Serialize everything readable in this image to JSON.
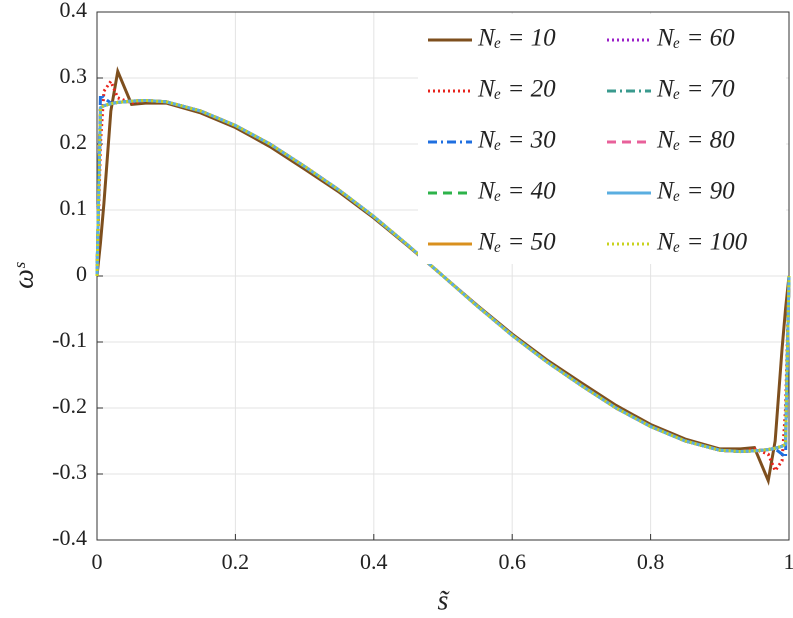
{
  "chart_data": {
    "type": "line",
    "xlabel": "s̃",
    "ylabel": "ωˢ",
    "x": [
      0,
      0.005,
      0.01,
      0.02,
      0.03,
      0.05,
      0.07,
      0.1,
      0.15,
      0.2,
      0.25,
      0.3,
      0.35,
      0.4,
      0.45,
      0.5,
      0.55,
      0.6,
      0.65,
      0.7,
      0.75,
      0.8,
      0.85,
      0.9,
      0.93,
      0.95,
      0.97,
      0.98,
      0.99,
      0.995,
      1
    ],
    "xlim": [
      0,
      1
    ],
    "xticks": [
      0,
      0.2,
      0.4,
      0.6,
      0.8,
      1
    ],
    "ylim": [
      -0.4,
      0.4
    ],
    "yticks": [
      -0.4,
      -0.3,
      -0.2,
      -0.1,
      0,
      0.1,
      0.2,
      0.3,
      0.4
    ],
    "grid": true,
    "legend": "top-right",
    "series": [
      {
        "name": "Nₑ = 10",
        "color": "#7e4f1e",
        "style": "solid",
        "values": [
          0,
          0.05,
          0.11,
          0.25,
          0.31,
          0.26,
          0.262,
          0.262,
          0.247,
          0.225,
          0.196,
          0.162,
          0.127,
          0.088,
          0.045,
          0,
          -0.045,
          -0.088,
          -0.127,
          -0.162,
          -0.196,
          -0.225,
          -0.247,
          -0.262,
          -0.262,
          -0.26,
          -0.31,
          -0.25,
          -0.11,
          -0.05,
          0
        ]
      },
      {
        "name": "Nₑ = 20",
        "color": "#e8231c",
        "style": "dotted",
        "values": [
          0,
          0.2,
          0.28,
          0.295,
          0.27,
          0.262,
          0.266,
          0.264,
          0.25,
          0.228,
          0.2,
          0.166,
          0.13,
          0.09,
          0.046,
          0,
          -0.046,
          -0.09,
          -0.13,
          -0.166,
          -0.2,
          -0.228,
          -0.25,
          -0.264,
          -0.266,
          -0.262,
          -0.27,
          -0.295,
          -0.28,
          -0.2,
          0
        ]
      },
      {
        "name": "Nₑ = 30",
        "color": "#1f6fe0",
        "style": "dashdot",
        "values": [
          0,
          0.275,
          0.27,
          0.262,
          0.263,
          0.265,
          0.266,
          0.264,
          0.25,
          0.228,
          0.2,
          0.166,
          0.13,
          0.09,
          0.046,
          0,
          -0.046,
          -0.09,
          -0.13,
          -0.166,
          -0.2,
          -0.228,
          -0.25,
          -0.264,
          -0.266,
          -0.265,
          -0.263,
          -0.262,
          -0.27,
          -0.275,
          0
        ]
      },
      {
        "name": "Nₑ = 40",
        "color": "#2db34a",
        "style": "dashed",
        "values": [
          0,
          0.255,
          0.258,
          0.261,
          0.263,
          0.265,
          0.266,
          0.264,
          0.25,
          0.228,
          0.2,
          0.166,
          0.13,
          0.09,
          0.046,
          0,
          -0.046,
          -0.09,
          -0.13,
          -0.166,
          -0.2,
          -0.228,
          -0.25,
          -0.264,
          -0.266,
          -0.265,
          -0.263,
          -0.261,
          -0.258,
          -0.255,
          0
        ]
      },
      {
        "name": "Nₑ = 50",
        "color": "#d9901e",
        "style": "solid",
        "values": [
          0,
          0.255,
          0.258,
          0.261,
          0.263,
          0.265,
          0.266,
          0.264,
          0.25,
          0.228,
          0.2,
          0.166,
          0.13,
          0.09,
          0.046,
          0,
          -0.046,
          -0.09,
          -0.13,
          -0.166,
          -0.2,
          -0.228,
          -0.25,
          -0.264,
          -0.266,
          -0.265,
          -0.263,
          -0.261,
          -0.258,
          -0.255,
          0
        ]
      },
      {
        "name": "Nₑ = 60",
        "color": "#9b1fc9",
        "style": "dotted",
        "values": [
          0,
          0.255,
          0.258,
          0.261,
          0.263,
          0.265,
          0.266,
          0.264,
          0.25,
          0.228,
          0.2,
          0.166,
          0.13,
          0.09,
          0.046,
          0,
          -0.046,
          -0.09,
          -0.13,
          -0.166,
          -0.2,
          -0.228,
          -0.25,
          -0.264,
          -0.266,
          -0.265,
          -0.263,
          -0.261,
          -0.258,
          -0.255,
          0
        ]
      },
      {
        "name": "Nₑ = 70",
        "color": "#3a9a8e",
        "style": "dashdot",
        "values": [
          0,
          0.255,
          0.258,
          0.261,
          0.263,
          0.265,
          0.266,
          0.264,
          0.25,
          0.228,
          0.2,
          0.166,
          0.13,
          0.09,
          0.046,
          0,
          -0.046,
          -0.09,
          -0.13,
          -0.166,
          -0.2,
          -0.228,
          -0.25,
          -0.264,
          -0.266,
          -0.265,
          -0.263,
          -0.261,
          -0.258,
          -0.255,
          0
        ]
      },
      {
        "name": "Nₑ = 80",
        "color": "#e8609a",
        "style": "dashed",
        "values": [
          0,
          0.255,
          0.258,
          0.261,
          0.263,
          0.265,
          0.266,
          0.264,
          0.25,
          0.228,
          0.2,
          0.166,
          0.13,
          0.09,
          0.046,
          0,
          -0.046,
          -0.09,
          -0.13,
          -0.166,
          -0.2,
          -0.228,
          -0.25,
          -0.264,
          -0.266,
          -0.265,
          -0.263,
          -0.261,
          -0.258,
          -0.255,
          0
        ]
      },
      {
        "name": "Nₑ = 90",
        "color": "#5aaee0",
        "style": "solid",
        "values": [
          0,
          0.255,
          0.258,
          0.261,
          0.263,
          0.265,
          0.266,
          0.264,
          0.25,
          0.228,
          0.2,
          0.166,
          0.13,
          0.09,
          0.046,
          0,
          -0.046,
          -0.09,
          -0.13,
          -0.166,
          -0.2,
          -0.228,
          -0.25,
          -0.264,
          -0.266,
          -0.265,
          -0.263,
          -0.261,
          -0.258,
          -0.255,
          0
        ]
      },
      {
        "name": "Nₑ = 100",
        "color": "#c8d21c",
        "style": "dotted",
        "values": [
          0,
          0.255,
          0.258,
          0.261,
          0.263,
          0.265,
          0.266,
          0.264,
          0.25,
          0.228,
          0.2,
          0.166,
          0.13,
          0.09,
          0.046,
          0,
          -0.046,
          -0.09,
          -0.13,
          -0.166,
          -0.2,
          -0.228,
          -0.25,
          -0.264,
          -0.266,
          -0.265,
          -0.263,
          -0.261,
          -0.258,
          -0.255,
          0
        ]
      }
    ]
  }
}
